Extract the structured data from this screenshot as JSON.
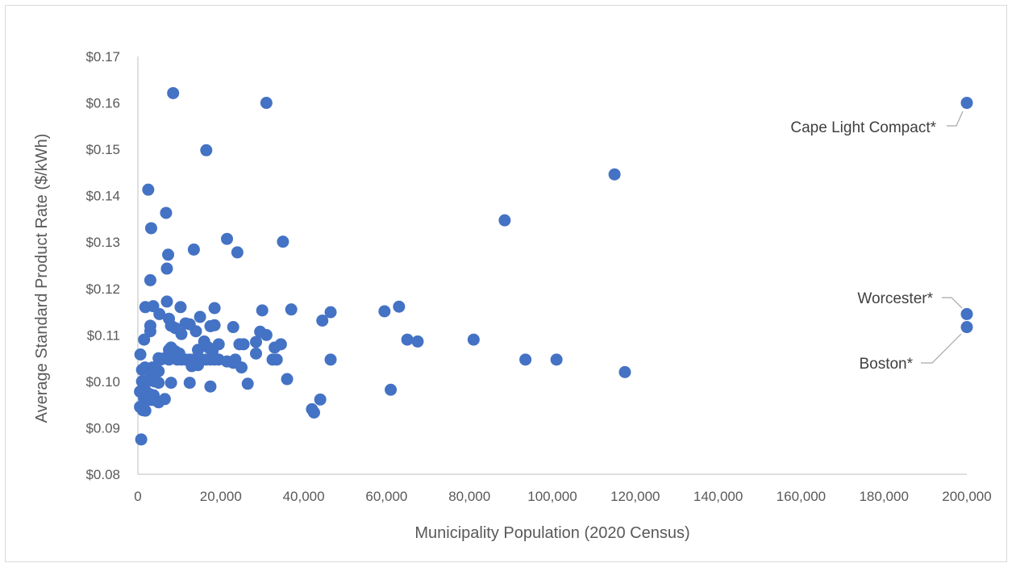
{
  "chart_data": {
    "type": "scatter",
    "title": "",
    "xlabel": "Municipality Population (2020 Census)",
    "ylabel": "Average Standard Product Rate ($/kWh)",
    "xlim": [
      0,
      200000
    ],
    "ylim": [
      0.08,
      0.17
    ],
    "x_ticks": [
      0,
      20000,
      40000,
      60000,
      80000,
      100000,
      120000,
      140000,
      160000,
      180000,
      200000
    ],
    "x_tick_labels": [
      "0",
      "20,000",
      "40,000",
      "60,000",
      "80,000",
      "100,000",
      "120,000",
      "140,000",
      "160,000",
      "180,000",
      "200,000"
    ],
    "y_ticks": [
      0.08,
      0.09,
      0.1,
      0.11,
      0.12,
      0.13,
      0.14,
      0.15,
      0.16,
      0.17
    ],
    "y_tick_labels": [
      "$0.08",
      "$0.09",
      "$0.10",
      "$0.11",
      "$0.12",
      "$0.13",
      "$0.14",
      "$0.15",
      "$0.16",
      "$0.17"
    ],
    "grid": false,
    "legend": "none",
    "marker_color": "#4472C4",
    "points": [
      [
        8500,
        0.1621
      ],
      [
        31000,
        0.16
      ],
      [
        16500,
        0.1498
      ],
      [
        115000,
        0.1446
      ],
      [
        2500,
        0.1413
      ],
      [
        88500,
        0.1347
      ],
      [
        6800,
        0.1363
      ],
      [
        3200,
        0.133
      ],
      [
        21500,
        0.1307
      ],
      [
        35000,
        0.1301
      ],
      [
        13500,
        0.1284
      ],
      [
        24000,
        0.1278
      ],
      [
        7300,
        0.1273
      ],
      [
        7000,
        0.1243
      ],
      [
        3000,
        0.1218
      ],
      [
        7000,
        0.1172
      ],
      [
        1800,
        0.116
      ],
      [
        3700,
        0.1162
      ],
      [
        10300,
        0.116
      ],
      [
        18500,
        0.1158
      ],
      [
        30000,
        0.1153
      ],
      [
        37000,
        0.1155
      ],
      [
        46500,
        0.1149
      ],
      [
        59500,
        0.1151
      ],
      [
        63000,
        0.1161
      ],
      [
        5200,
        0.1145
      ],
      [
        7500,
        0.1135
      ],
      [
        15000,
        0.1139
      ],
      [
        3000,
        0.112
      ],
      [
        8000,
        0.112
      ],
      [
        11500,
        0.1125
      ],
      [
        12500,
        0.1123
      ],
      [
        17500,
        0.1119
      ],
      [
        18500,
        0.1121
      ],
      [
        23000,
        0.1117
      ],
      [
        3000,
        0.1108
      ],
      [
        9000,
        0.1115
      ],
      [
        10500,
        0.1102
      ],
      [
        14000,
        0.1108
      ],
      [
        29500,
        0.1107
      ],
      [
        31000,
        0.11
      ],
      [
        44500,
        0.1131
      ],
      [
        1500,
        0.109
      ],
      [
        16000,
        0.1086
      ],
      [
        19500,
        0.108
      ],
      [
        28500,
        0.1085
      ],
      [
        34500,
        0.108
      ],
      [
        33000,
        0.1073
      ],
      [
        65000,
        0.109
      ],
      [
        67500,
        0.1086
      ],
      [
        81000,
        0.109
      ],
      [
        7500,
        0.1068
      ],
      [
        8000,
        0.1073
      ],
      [
        9000,
        0.1065
      ],
      [
        10000,
        0.106
      ],
      [
        14500,
        0.1068
      ],
      [
        17000,
        0.1073
      ],
      [
        18000,
        0.1065
      ],
      [
        24500,
        0.108
      ],
      [
        25500,
        0.108
      ],
      [
        28500,
        0.106
      ],
      [
        600,
        0.1058
      ],
      [
        5000,
        0.105
      ],
      [
        5500,
        0.1047
      ],
      [
        6500,
        0.105
      ],
      [
        7500,
        0.1047
      ],
      [
        8500,
        0.1052
      ],
      [
        9500,
        0.1047
      ],
      [
        10500,
        0.1047
      ],
      [
        11500,
        0.1047
      ],
      [
        12500,
        0.1047
      ],
      [
        13500,
        0.1047
      ],
      [
        14500,
        0.104
      ],
      [
        15500,
        0.1047
      ],
      [
        16500,
        0.1047
      ],
      [
        17500,
        0.1047
      ],
      [
        18500,
        0.1047
      ],
      [
        19500,
        0.1047
      ],
      [
        21500,
        0.1043
      ],
      [
        23000,
        0.104
      ],
      [
        23500,
        0.1047
      ],
      [
        32500,
        0.1047
      ],
      [
        33500,
        0.1047
      ],
      [
        46500,
        0.1047
      ],
      [
        93500,
        0.1047
      ],
      [
        101000,
        0.1047
      ],
      [
        13000,
        0.1033
      ],
      [
        14500,
        0.1035
      ],
      [
        25000,
        0.103
      ],
      [
        1000,
        0.1025
      ],
      [
        1700,
        0.103
      ],
      [
        2500,
        0.1027
      ],
      [
        3500,
        0.103
      ],
      [
        4000,
        0.1025
      ],
      [
        5000,
        0.1022
      ],
      [
        117500,
        0.102
      ],
      [
        3000,
        0.1015
      ],
      [
        36000,
        0.1005
      ],
      [
        1000,
        0.1
      ],
      [
        2200,
        0.1
      ],
      [
        4000,
        0.1
      ],
      [
        5000,
        0.0997
      ],
      [
        8000,
        0.0997
      ],
      [
        12500,
        0.0997
      ],
      [
        26500,
        0.0995
      ],
      [
        17500,
        0.0989
      ],
      [
        500,
        0.0978
      ],
      [
        2000,
        0.0978
      ],
      [
        3000,
        0.0972
      ],
      [
        3800,
        0.097
      ],
      [
        61000,
        0.0982
      ],
      [
        1500,
        0.0963
      ],
      [
        2500,
        0.096
      ],
      [
        3500,
        0.096
      ],
      [
        5000,
        0.0955
      ],
      [
        6500,
        0.0962
      ],
      [
        44000,
        0.0961
      ],
      [
        500,
        0.0945
      ],
      [
        1200,
        0.0938
      ],
      [
        1800,
        0.0937
      ],
      [
        42000,
        0.094
      ],
      [
        42500,
        0.0933
      ],
      [
        800,
        0.0875
      ],
      [
        200000,
        0.16
      ],
      [
        200000,
        0.1145
      ],
      [
        200000,
        0.1117
      ]
    ],
    "annotations": [
      "Cape Light Compact*",
      "Worcester*",
      "Boston*"
    ]
  }
}
